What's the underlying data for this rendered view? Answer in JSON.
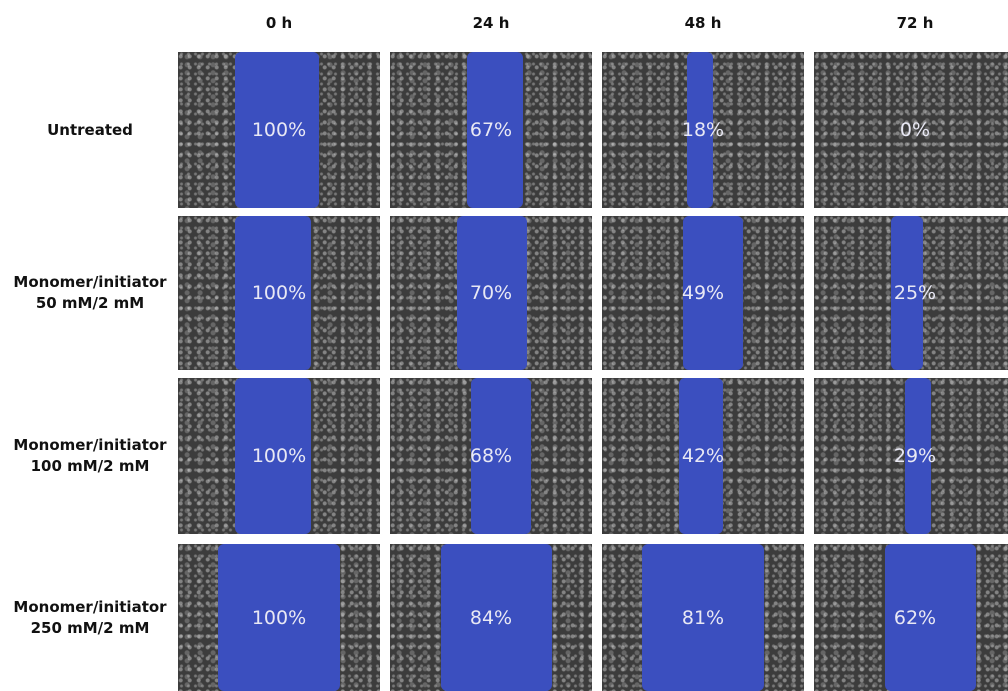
{
  "columns": [
    "0 h",
    "24 h",
    "48 h",
    "72 h"
  ],
  "rows": [
    {
      "label": [
        "Untreated"
      ],
      "cells": [
        "100%",
        "67%",
        "18%",
        "0%"
      ]
    },
    {
      "label": [
        "Monomer/initiator",
        "50 mM/2 mM"
      ],
      "cells": [
        "100%",
        "70%",
        "49%",
        "25%"
      ]
    },
    {
      "label": [
        "Monomer/initiator",
        "100 mM/2 mM"
      ],
      "cells": [
        "100%",
        "68%",
        "42%",
        "29%"
      ]
    },
    {
      "label": [
        "Monomer/initiator",
        "250 mM/2 mM"
      ],
      "cells": [
        "100%",
        "84%",
        "81%",
        "62%"
      ]
    }
  ]
}
